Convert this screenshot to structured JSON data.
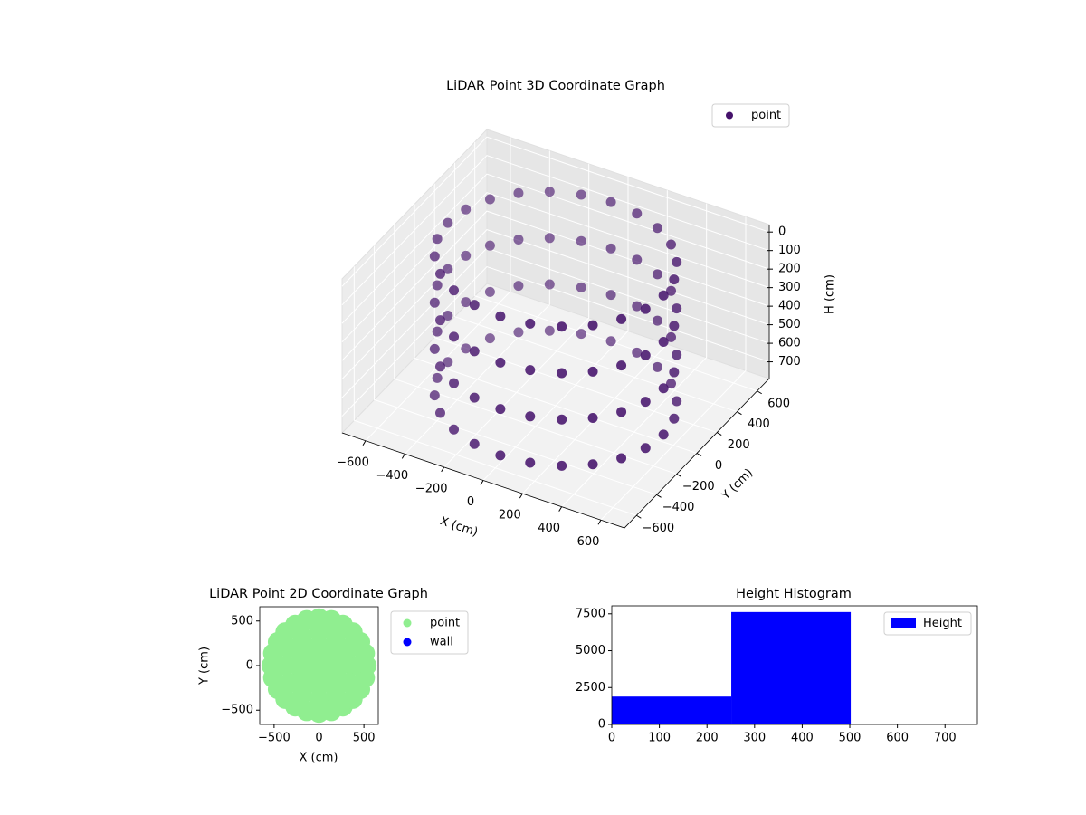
{
  "chart_data": [
    {
      "type": "scatter3d",
      "title": "LiDAR Point 3D Coordinate Graph",
      "xlabel": "X (cm)",
      "ylabel": "Y (cm)",
      "zlabel": "H (cm)",
      "xlim": [
        -720,
        720
      ],
      "ylim": [
        -720,
        720
      ],
      "zlim": [
        -40,
        790
      ],
      "z_inverted": true,
      "xticks": [
        {
          "value": -600,
          "label": "−600"
        },
        {
          "value": -400,
          "label": "−400"
        },
        {
          "value": -200,
          "label": "−200"
        },
        0,
        200,
        400,
        600
      ],
      "yticks": [
        {
          "value": -600,
          "label": "−600"
        },
        {
          "value": -400,
          "label": "−400"
        },
        {
          "value": -200,
          "label": "−200"
        },
        0,
        200,
        400,
        600
      ],
      "zticks": [
        0,
        100,
        200,
        300,
        400,
        500,
        600,
        700
      ],
      "grid": true,
      "legend": "upper right",
      "series": [
        {
          "name": "point",
          "color": "#45126b",
          "x": [
            550,
            531,
            476,
            389,
            275,
            142,
            0,
            -142,
            -275,
            -389,
            -476,
            -531,
            -550,
            -531,
            -476,
            -389,
            -275,
            -142,
            0,
            142,
            275,
            389,
            476,
            531,
            550,
            531,
            476,
            389,
            275,
            142,
            0,
            -142,
            -275,
            -389,
            -476,
            -531,
            -550,
            -531,
            -476,
            -389,
            -275,
            -142,
            0,
            142,
            275,
            389,
            476,
            531,
            550,
            531,
            476,
            389,
            275,
            142,
            0,
            -142,
            -275,
            -389,
            -476,
            -531,
            -550,
            -531,
            -476,
            -389,
            -275,
            -142,
            0,
            142,
            275,
            389,
            476,
            531,
            550,
            531,
            476,
            389,
            275,
            142,
            0,
            -142,
            -275,
            -389,
            -476,
            -531,
            -550,
            -531,
            -476,
            -389,
            -275,
            -142,
            0,
            142,
            275,
            389,
            476,
            531
          ],
          "y": [
            0,
            142,
            275,
            389,
            476,
            531,
            550,
            531,
            476,
            389,
            275,
            142,
            0,
            -142,
            -275,
            -389,
            -476,
            -531,
            -550,
            -531,
            -476,
            -389,
            -275,
            -142,
            0,
            142,
            275,
            389,
            476,
            531,
            550,
            531,
            476,
            389,
            275,
            142,
            0,
            -142,
            -275,
            -389,
            -476,
            -531,
            -550,
            -531,
            -476,
            -389,
            -275,
            -142,
            0,
            142,
            275,
            389,
            476,
            531,
            550,
            531,
            476,
            389,
            275,
            142,
            0,
            -142,
            -275,
            -389,
            -476,
            -531,
            -550,
            -531,
            -476,
            -389,
            -275,
            -142,
            0,
            142,
            275,
            389,
            476,
            531,
            550,
            531,
            476,
            389,
            275,
            142,
            0,
            -142,
            -275,
            -389,
            -476,
            -531,
            -550,
            -531,
            -476,
            -389,
            -275,
            -142
          ],
          "z": [
            0,
            0,
            0,
            0,
            0,
            0,
            0,
            0,
            0,
            0,
            0,
            0,
            0,
            0,
            0,
            0,
            0,
            0,
            0,
            0,
            0,
            0,
            0,
            0,
            250,
            250,
            250,
            250,
            250,
            250,
            250,
            250,
            250,
            250,
            250,
            250,
            250,
            250,
            250,
            250,
            250,
            250,
            250,
            250,
            250,
            250,
            250,
            250,
            500,
            500,
            500,
            500,
            500,
            500,
            500,
            500,
            500,
            500,
            500,
            500,
            500,
            500,
            500,
            500,
            500,
            500,
            500,
            500,
            500,
            500,
            500,
            500,
            750,
            750,
            750,
            750,
            750,
            750,
            750,
            750,
            750,
            750,
            750,
            750,
            750,
            750,
            750,
            750,
            750,
            750,
            750,
            750,
            750,
            750,
            750,
            750
          ]
        }
      ]
    },
    {
      "type": "scatter",
      "title": "LiDAR Point 2D Coordinate Graph",
      "xlabel": "X (cm)",
      "ylabel": "Y (cm)",
      "xlim": [
        -660,
        660
      ],
      "ylim": [
        -660,
        660
      ],
      "xticks": [
        {
          "value": -500,
          "label": "−500"
        },
        0,
        500
      ],
      "yticks": [
        {
          "value": -500,
          "label": "−500"
        },
        0,
        500
      ],
      "legend": "outside upper right",
      "series": [
        {
          "name": "point",
          "color": "#90ee90",
          "x": [
            530,
            512,
            459,
            375,
            265,
            137,
            0,
            -137,
            -265,
            -375,
            -459,
            -512,
            -530,
            -512,
            -459,
            -375,
            -265,
            -137,
            0,
            137,
            265,
            375,
            459,
            512,
            380,
            329,
            190,
            0,
            -190,
            -329,
            -380,
            -329,
            -190,
            0,
            190,
            329,
            230,
            163,
            0,
            -163,
            -230,
            -163,
            0,
            163,
            80,
            0,
            -80,
            0,
            0
          ],
          "y": [
            0,
            137,
            265,
            375,
            459,
            512,
            530,
            512,
            459,
            375,
            265,
            137,
            0,
            -137,
            -265,
            -375,
            -459,
            -512,
            -530,
            -512,
            -459,
            -375,
            -265,
            -137,
            0,
            190,
            329,
            380,
            329,
            190,
            0,
            -190,
            -329,
            -380,
            -329,
            -190,
            0,
            163,
            230,
            163,
            0,
            -163,
            -230,
            -163,
            0,
            80,
            0,
            -80,
            0
          ]
        },
        {
          "name": "wall",
          "color": "#0000ff",
          "x": [],
          "y": []
        }
      ]
    },
    {
      "type": "histogram",
      "title": "Height Histogram",
      "bins": [
        0,
        251,
        502,
        753
      ],
      "series": [
        {
          "name": "Height",
          "color": "#0000ff",
          "values": [
            1890,
            7620,
            50
          ]
        }
      ],
      "xlim": [
        0,
        768
      ],
      "ylim": [
        0,
        8040
      ],
      "xticks": [
        0,
        100,
        200,
        300,
        400,
        500,
        600,
        700
      ],
      "yticks": [
        0,
        2500,
        5000,
        7500
      ],
      "legend": "upper right"
    }
  ]
}
